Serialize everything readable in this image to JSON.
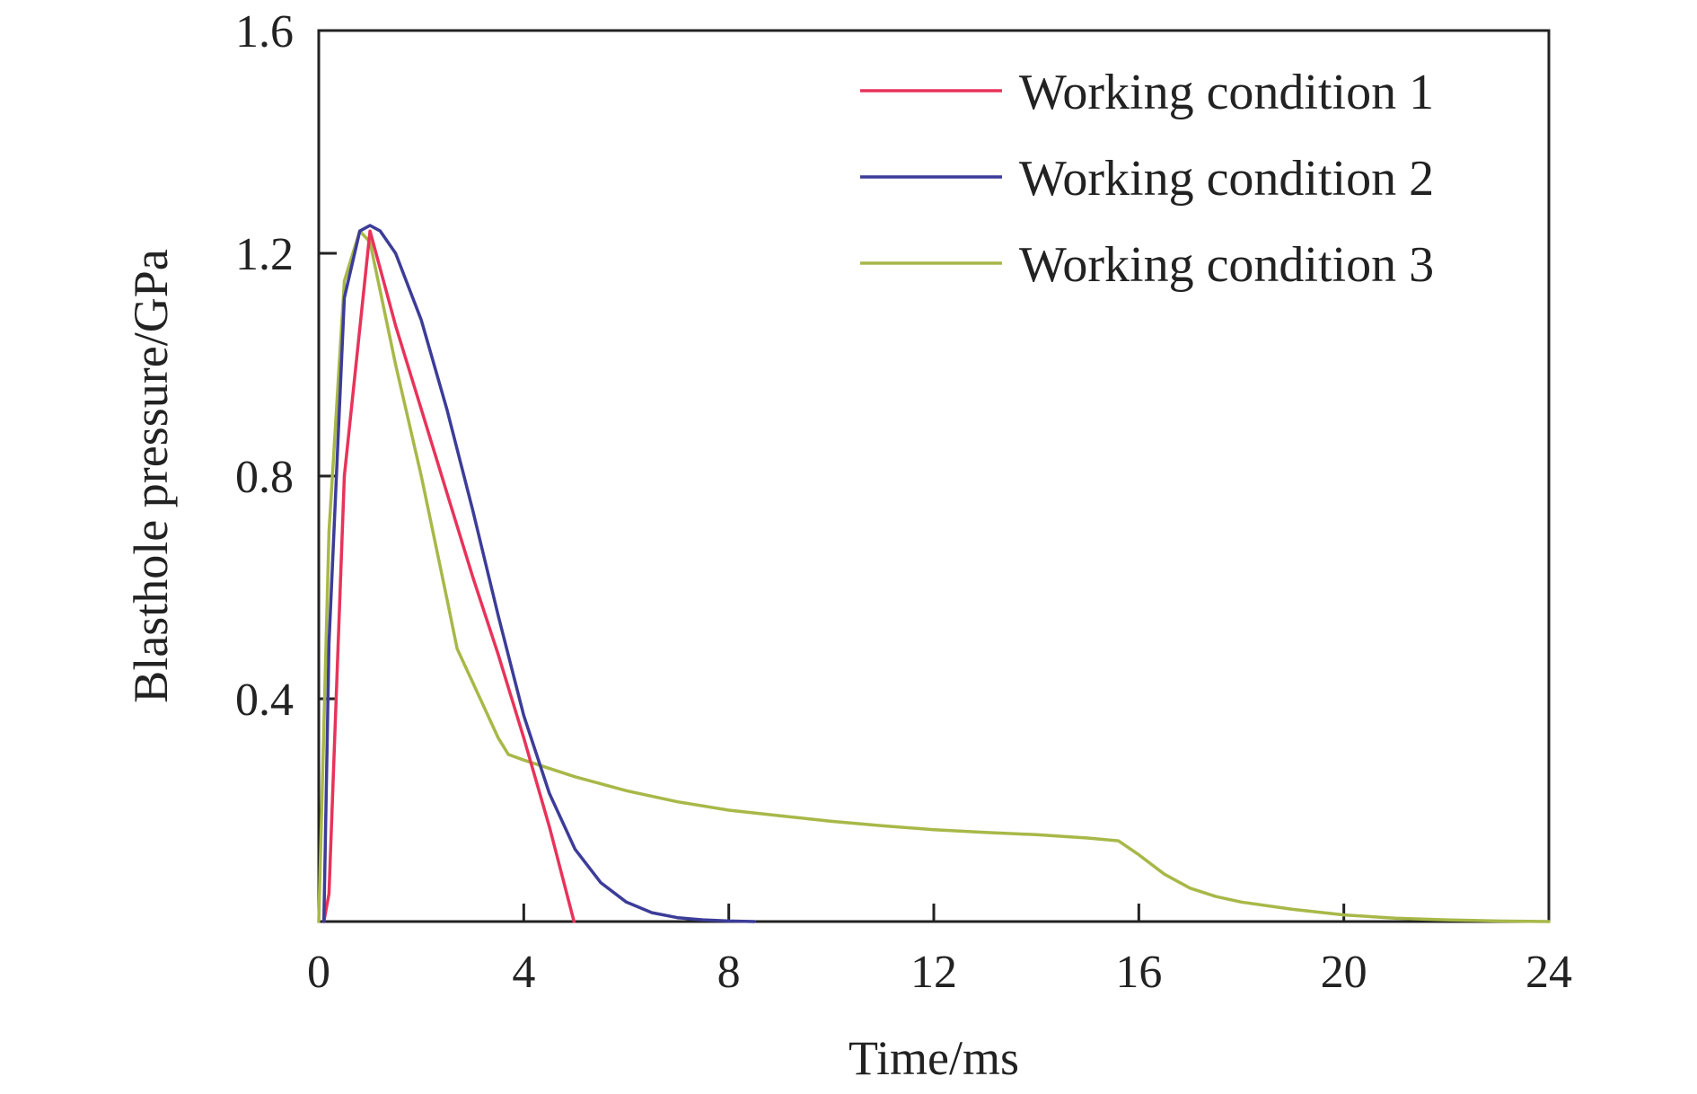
{
  "chart_data": {
    "type": "line",
    "title": "",
    "xlabel": "Time/ms",
    "ylabel": "Blasthole pressure/GPa",
    "xlim": [
      0,
      24
    ],
    "ylim": [
      0,
      1.6
    ],
    "xticks": [
      0,
      4,
      8,
      12,
      16,
      20,
      24
    ],
    "yticks": [
      0.4,
      0.8,
      1.2,
      1.6
    ],
    "xtick_labels": [
      "0",
      "4",
      "8",
      "12",
      "16",
      "20",
      "24"
    ],
    "ytick_labels": [
      "0.4",
      "0.8",
      "1.2",
      "1.6"
    ],
    "grid": false,
    "legend_position": "top-right",
    "series": [
      {
        "name": "Working condition 1",
        "color": "#e8335a",
        "x": [
          0.1,
          0.2,
          0.5,
          1.0,
          1.5,
          2.0,
          2.5,
          3.0,
          3.5,
          4.0,
          4.5,
          4.98
        ],
        "y": [
          0.0,
          0.05,
          0.8,
          1.24,
          1.07,
          0.92,
          0.77,
          0.62,
          0.48,
          0.33,
          0.17,
          0.0
        ]
      },
      {
        "name": "Working condition 2",
        "color": "#3c3c99",
        "x": [
          0.1,
          0.2,
          0.5,
          0.8,
          1.0,
          1.2,
          1.5,
          2.0,
          2.5,
          3.0,
          3.5,
          4.0,
          4.5,
          5.0,
          5.5,
          6.0,
          6.5,
          7.0,
          7.5,
          8.0,
          8.5
        ],
        "y": [
          0.0,
          0.5,
          1.12,
          1.24,
          1.25,
          1.24,
          1.2,
          1.08,
          0.92,
          0.74,
          0.55,
          0.37,
          0.23,
          0.13,
          0.07,
          0.035,
          0.016,
          0.007,
          0.003,
          0.001,
          0.0
        ]
      },
      {
        "name": "Working condition 3",
        "color": "#a8b848",
        "x": [
          0.0,
          0.2,
          0.5,
          0.8,
          1.0,
          1.5,
          2.0,
          2.5,
          2.7,
          3.0,
          3.5,
          3.7,
          4.0,
          5.0,
          6.0,
          7.0,
          8.0,
          9.0,
          10.0,
          11.0,
          12.0,
          13.0,
          14.0,
          15.0,
          15.6,
          16.0,
          16.5,
          17.0,
          17.5,
          18.0,
          19.0,
          20.0,
          21.0,
          22.0,
          23.0,
          24.0
        ],
        "y": [
          0.0,
          0.7,
          1.15,
          1.24,
          1.22,
          1.0,
          0.8,
          0.58,
          0.49,
          0.43,
          0.33,
          0.3,
          0.29,
          0.26,
          0.235,
          0.215,
          0.2,
          0.19,
          0.18,
          0.172,
          0.165,
          0.16,
          0.156,
          0.15,
          0.145,
          0.12,
          0.085,
          0.06,
          0.045,
          0.035,
          0.022,
          0.012,
          0.006,
          0.003,
          0.001,
          0.0
        ]
      }
    ]
  }
}
